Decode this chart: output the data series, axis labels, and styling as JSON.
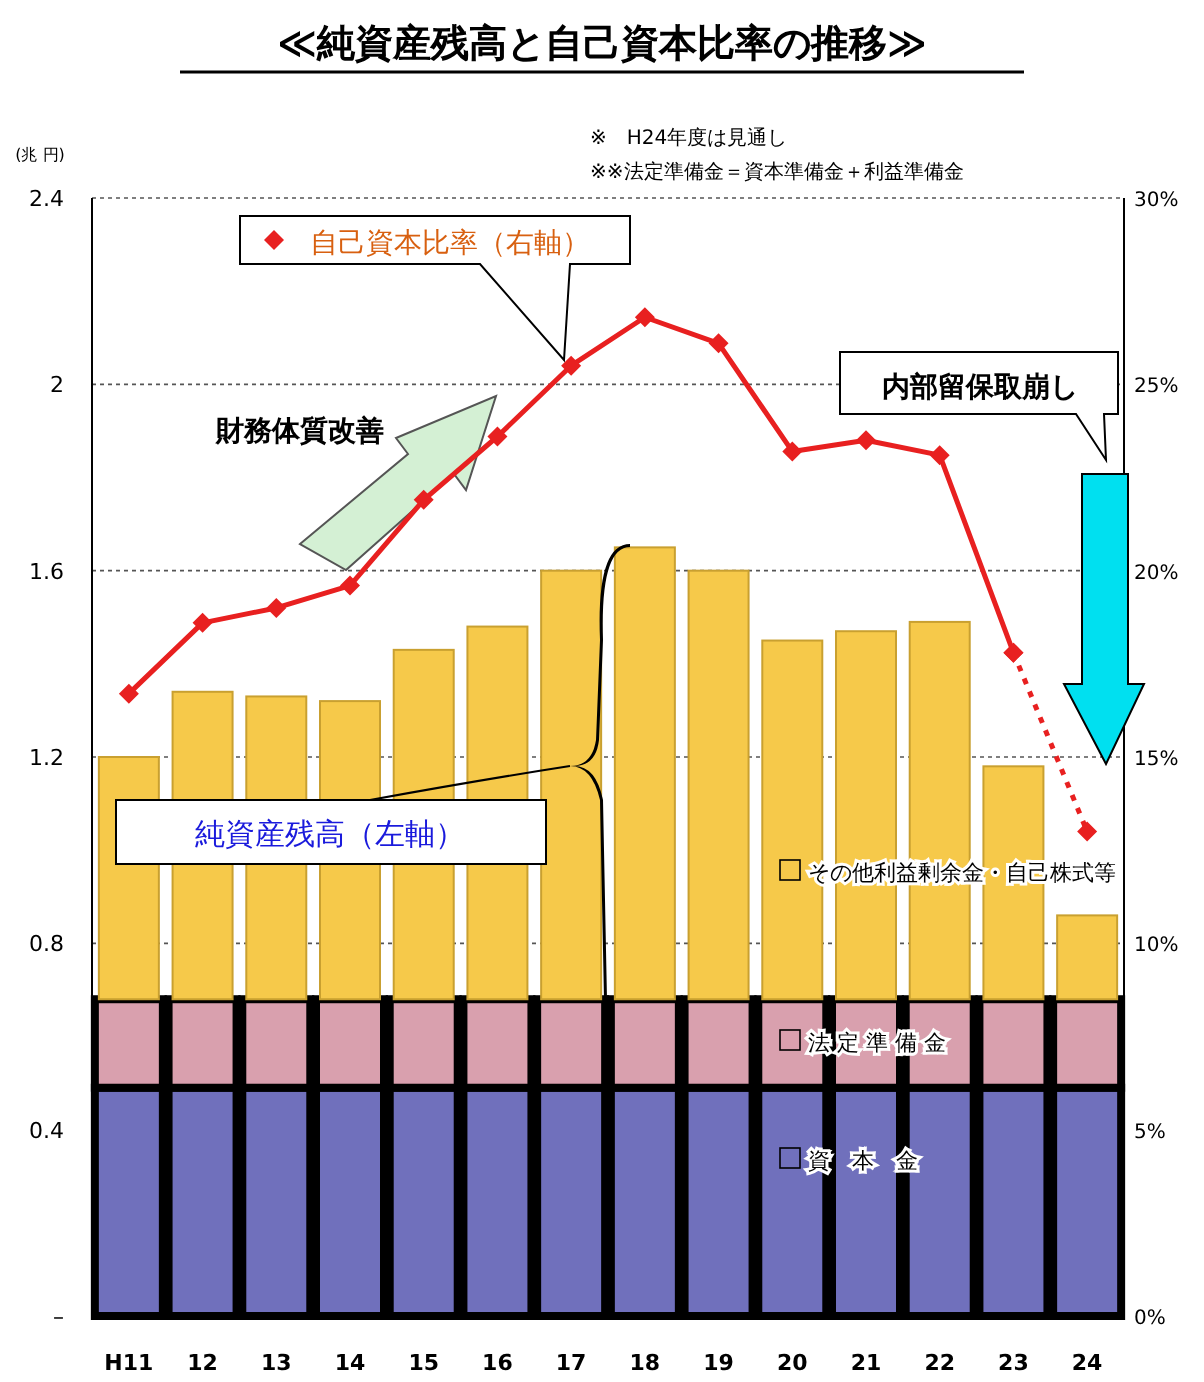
{
  "chart_data": {
    "type": "bar",
    "stacked": true,
    "title": "≪純資産残高と自己資本比率の推移≫",
    "ylabel": "(兆 円)",
    "categories": [
      "H11",
      "12",
      "13",
      "14",
      "15",
      "16",
      "17",
      "18",
      "19",
      "20",
      "21",
      "22",
      "23",
      "24"
    ],
    "series": [
      {
        "name": "資　本　金",
        "color": "#7070bc",
        "values": [
          0.49,
          0.49,
          0.49,
          0.49,
          0.49,
          0.49,
          0.49,
          0.49,
          0.49,
          0.49,
          0.49,
          0.49,
          0.49,
          0.49
        ]
      },
      {
        "name": "法 定 準 備 金",
        "color": "#d9a0ae",
        "values": [
          0.19,
          0.19,
          0.19,
          0.19,
          0.19,
          0.19,
          0.19,
          0.19,
          0.19,
          0.19,
          0.19,
          0.19,
          0.19,
          0.19
        ]
      },
      {
        "name": "その他利益剰余金・自己株式等",
        "color": "#f6c94a",
        "values": [
          0.52,
          0.66,
          0.65,
          0.64,
          0.75,
          0.8,
          0.92,
          0.97,
          0.92,
          0.77,
          0.79,
          0.81,
          0.5,
          0.18
        ]
      },
      {
        "type": "line",
        "axis": "y2",
        "name": "自己資本比率（右軸）",
        "color": "#e82020",
        "marker": "diamond",
        "line_style": "solid",
        "values": [
          16.7,
          18.6,
          19.0,
          19.6,
          21.9,
          23.6,
          25.5,
          26.8,
          26.1,
          23.2,
          23.5,
          23.1,
          17.8,
          null
        ]
      },
      {
        "type": "line",
        "axis": "y2",
        "color": "#e82020",
        "marker": "diamond",
        "line_style": "dotted",
        "values": [
          null,
          null,
          null,
          null,
          null,
          null,
          null,
          null,
          null,
          null,
          null,
          null,
          17.8,
          13.0
        ]
      }
    ],
    "ylim": [
      0,
      2.4
    ],
    "yticks": [
      {
        "value": 0,
        "label": "–"
      },
      0.4,
      0.8,
      1.2,
      1.6,
      2.0,
      2.4
    ],
    "y2lim": [
      0,
      30
    ],
    "y2ticks": [
      {
        "value": 0,
        "label": "0%"
      },
      {
        "value": 5,
        "label": "5%"
      },
      {
        "value": 10,
        "label": "10%"
      },
      {
        "value": 15,
        "label": "15%"
      },
      {
        "value": 20,
        "label": "20%"
      },
      {
        "value": 25,
        "label": "25%"
      },
      {
        "value": 30,
        "label": "30%"
      }
    ],
    "grid": "y",
    "legend": "right",
    "annotations": [
      "※　H24年度は見通し",
      "※※法定準備金＝資本準備金＋利益準備金",
      "純資産残高（左軸）",
      "財務体質改善",
      "内部留保取崩し"
    ]
  }
}
